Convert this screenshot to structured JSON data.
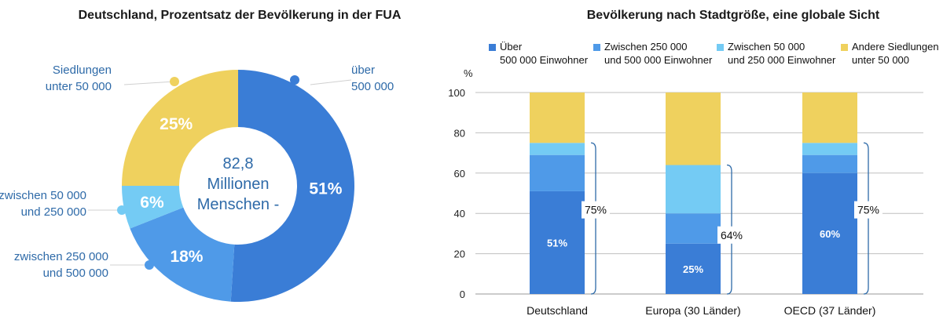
{
  "colors": {
    "over_500k": "#3a7dd6",
    "250k_500k": "#4f9ae8",
    "50k_250k": "#74cbf4",
    "under_50k": "#efd15e",
    "label_blue": "#2e6aa8",
    "bracket": "#2e6aa8",
    "axis": "#bfbfbf"
  },
  "chart_data": [
    {
      "type": "pie",
      "title": "Deutschland, Prozentsatz der Bevölkerung in der FUA",
      "center_text": [
        "82,8",
        "Millionen",
        "Menschen -"
      ],
      "slices": [
        {
          "name": "über 500 000",
          "label_lines": [
            "über",
            "500 000"
          ],
          "value": 51,
          "pct_label": "51%",
          "color_key": "over_500k"
        },
        {
          "name": "zwischen 250 000 und 500 000",
          "label_lines": [
            "zwischen 250 000",
            "und 500 000"
          ],
          "value": 18,
          "pct_label": "18%",
          "color_key": "250k_500k"
        },
        {
          "name": "zwischen 50 000 und 250 000",
          "label_lines": [
            "zwischen 50 000",
            "und 250 000"
          ],
          "value": 6,
          "pct_label": "6%",
          "color_key": "50k_250k"
        },
        {
          "name": "Siedlungen unter 50 000",
          "label_lines": [
            "Siedlungen",
            "unter 50 000"
          ],
          "value": 25,
          "pct_label": "25%",
          "color_key": "under_50k"
        }
      ]
    },
    {
      "type": "bar",
      "stacked": true,
      "title": "Bevölkerung nach Stadtgröße, eine globale Sicht",
      "ylabel": "%",
      "ylim": [
        0,
        100
      ],
      "yticks": [
        "0",
        "20",
        "40",
        "60",
        "80",
        "100"
      ],
      "categories": [
        "Deutschland",
        "Europa (30 Länder)",
        "OECD (37 Länder)"
      ],
      "series": [
        {
          "name": "Über 500 000 Einwohner",
          "legend_lines": [
            "Über",
            "500 000 Einwohner"
          ],
          "values": [
            51,
            25,
            60
          ],
          "color_key": "over_500k"
        },
        {
          "name": "Zwischen 250 000 und 500 000 Einwohner",
          "legend_lines": [
            "Zwischen 250 000",
            "und 500 000 Einwohner"
          ],
          "values": [
            18,
            15,
            9
          ],
          "color_key": "250k_500k"
        },
        {
          "name": "Zwischen 50 000 und 250 000 Einwohner",
          "legend_lines": [
            "Zwischen 50 000",
            "und 250 000 Einwohner"
          ],
          "values": [
            6,
            24,
            6
          ],
          "color_key": "50k_250k"
        },
        {
          "name": "Andere Siedlungen unter 50 000",
          "legend_lines": [
            "Andere Siedlungen",
            "unter 50 000"
          ],
          "values": [
            25,
            36,
            25
          ],
          "color_key": "under_50k"
        }
      ],
      "bar_labels": [
        "51%",
        "25%",
        "60%"
      ],
      "bracket_values": [
        75,
        64,
        75
      ],
      "bracket_labels": [
        "75%",
        "64%",
        "75%"
      ]
    }
  ]
}
